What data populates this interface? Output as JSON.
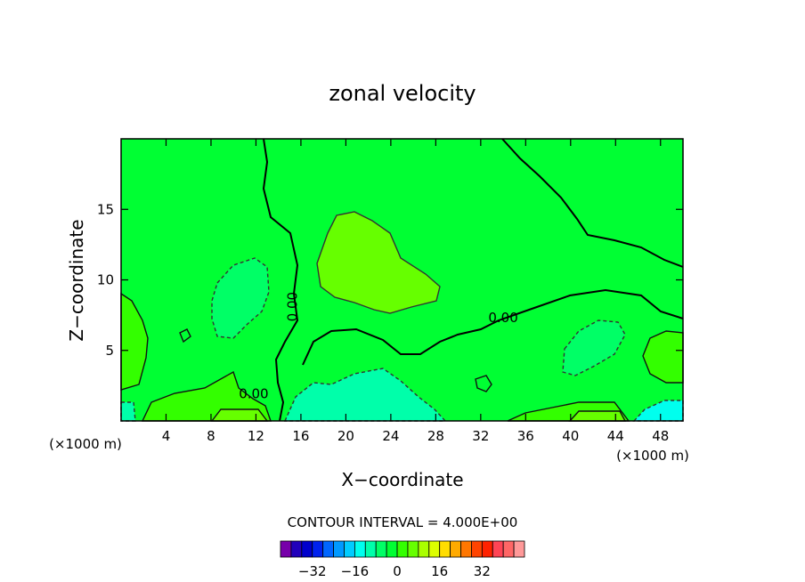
{
  "chart_data": {
    "type": "heatmap",
    "title": "zonal velocity",
    "xlabel": "X−coordinate",
    "ylabel": "Z−coordinate",
    "x_unit_left": "(×1000 m)",
    "x_unit_right": "(×1000 m)",
    "xlim": [
      0,
      50
    ],
    "ylim": [
      0,
      20
    ],
    "x_ticks": [
      4,
      8,
      12,
      16,
      20,
      24,
      28,
      32,
      36,
      40,
      44,
      48
    ],
    "y_ticks": [
      5,
      10,
      15
    ],
    "field_background": "#00ff33",
    "contour_interval_text": "CONTOUR INTERVAL = 4.000E+00",
    "contour_labels": [
      {
        "text": "0.00",
        "x": 15.3,
        "y": 8.1,
        "rotate": -90
      },
      {
        "text": "0.00",
        "x": 34.0,
        "y": 7.3,
        "rotate": 0
      },
      {
        "text": "0.00",
        "x": 11.8,
        "y": 1.9,
        "rotate": 0
      }
    ],
    "colorbar": {
      "colors": [
        "#7700aa",
        "#2200bb",
        "#0000cc",
        "#0022ee",
        "#0066ff",
        "#0099ff",
        "#00ccff",
        "#00ffee",
        "#00ffaa",
        "#00ff66",
        "#00ff33",
        "#33ff00",
        "#66ff00",
        "#aaff00",
        "#ddff00",
        "#ffdd00",
        "#ffaa00",
        "#ff7700",
        "#ff4400",
        "#ff2200",
        "#ff4455",
        "#ff6666",
        "#ff9999"
      ],
      "tick_labels": [
        "−32",
        "−16",
        "0",
        "16",
        "32"
      ],
      "tick_values": [
        -32,
        -16,
        0,
        16,
        32
      ],
      "min": -44,
      "max": 48
    }
  }
}
